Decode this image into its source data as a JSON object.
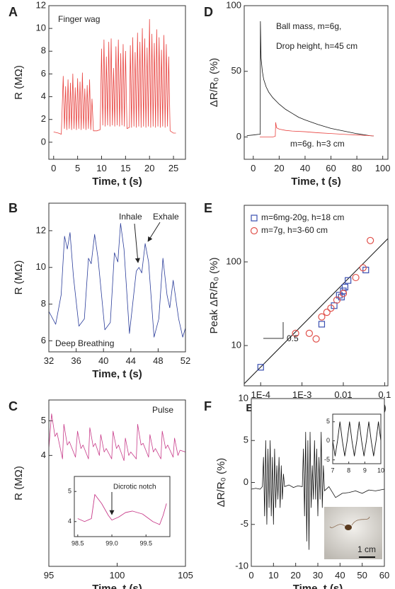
{
  "chart_data": [
    {
      "label": "A",
      "type": "line",
      "xlabel": "Time, t (s)",
      "ylabel": "R (MΩ)",
      "xlim": [
        -1,
        27.5
      ],
      "ylim": [
        -1.5,
        12
      ],
      "xticks": [
        0,
        5,
        10,
        15,
        20,
        25
      ],
      "yticks": [
        0,
        2,
        4,
        6,
        8,
        10,
        12
      ],
      "annotations": [
        {
          "text": "Finger wag"
        }
      ],
      "series": [
        {
          "color": "#e8413e",
          "x": [
            0,
            1,
            1.6,
            2,
            2.25,
            2.5,
            2.75,
            3,
            3.25,
            3.5,
            3.75,
            4,
            4.25,
            4.5,
            4.75,
            5,
            5.25,
            5.5,
            5.75,
            6,
            6.25,
            6.5,
            6.75,
            7,
            7.25,
            7.5,
            7.75,
            8,
            8.3,
            9,
            9.7,
            10,
            10.25,
            10.5,
            10.75,
            11,
            11.25,
            11.5,
            11.75,
            12,
            12.25,
            12.5,
            12.75,
            13,
            13.25,
            13.5,
            13.75,
            14,
            14.25,
            14.5,
            14.75,
            15,
            15.3,
            15.8,
            16,
            16.25,
            16.5,
            16.75,
            17,
            17.25,
            17.5,
            17.75,
            18,
            18.25,
            18.5,
            18.75,
            19,
            19.25,
            19.5,
            19.75,
            20,
            20.25,
            20.5,
            20.75,
            21,
            21.25,
            21.5,
            21.75,
            22,
            22.25,
            22.5,
            22.75,
            23,
            23.25,
            23.5,
            23.75,
            24,
            24.3,
            25,
            25.5
          ],
          "values": [
            0.9,
            0.8,
            0.7,
            5.8,
            1.2,
            4.9,
            1.1,
            5.5,
            1.2,
            5.2,
            1.1,
            6.0,
            1.2,
            4.8,
            1.1,
            5.6,
            1.2,
            5.3,
            1.1,
            6.1,
            1.2,
            4.7,
            1.1,
            5.0,
            1.2,
            5.5,
            1.1,
            3.8,
            1.0,
            1.0,
            1.1,
            8.2,
            1.5,
            9.0,
            1.4,
            7.5,
            1.5,
            8.8,
            1.4,
            9.1,
            1.5,
            6.5,
            1.4,
            8.4,
            1.5,
            9.0,
            1.4,
            7.8,
            1.5,
            8.6,
            1.4,
            8.0,
            1.2,
            1.3,
            8.5,
            1.3,
            9.2,
            1.4,
            7.9,
            1.3,
            9.6,
            1.4,
            8.8,
            1.3,
            10.0,
            1.4,
            9.1,
            1.3,
            8.3,
            1.4,
            10.8,
            1.3,
            9.5,
            1.4,
            8.7,
            1.3,
            9.9,
            1.4,
            9.2,
            1.3,
            8.1,
            1.4,
            9.4,
            1.3,
            8.6,
            1.4,
            7.5,
            1.0,
            0.8,
            0.8
          ]
        }
      ]
    },
    {
      "label": "B",
      "type": "line",
      "xlabel": "Time, t (s)",
      "ylabel": "R (MΩ)",
      "xlim": [
        32,
        52
      ],
      "ylim": [
        5.4,
        13.5
      ],
      "xticks": [
        32,
        36,
        40,
        44,
        48,
        52
      ],
      "yticks": [
        6,
        8,
        10,
        12
      ],
      "annotations": [
        {
          "text": "Inhale"
        },
        {
          "text": "Exhale"
        },
        {
          "text": "Deep Breathing"
        }
      ],
      "series": [
        {
          "color": "#2b3d9a",
          "x": [
            32,
            33,
            33.8,
            34.3,
            34.7,
            35.1,
            35.6,
            36.4,
            37.2,
            37.8,
            38.2,
            38.7,
            39.2,
            40.2,
            41.0,
            41.6,
            42.1,
            42.5,
            43.0,
            43.8,
            44.8,
            45.2,
            45.6,
            46.1,
            46.6,
            47.4,
            48.1,
            48.7,
            49.3,
            49.7,
            50.2,
            51.0,
            51.6,
            52
          ],
          "values": [
            7.6,
            6.9,
            8.5,
            11.7,
            11.0,
            11.9,
            9.5,
            6.8,
            7.2,
            10.5,
            10.2,
            11.8,
            10.5,
            6.6,
            7.0,
            10.8,
            10.3,
            12.4,
            11.0,
            6.4,
            9.8,
            10.0,
            9.7,
            11.3,
            10.3,
            6.2,
            7.2,
            10.5,
            8.5,
            7.8,
            9.3,
            7.2,
            6.2,
            6.7
          ]
        }
      ]
    },
    {
      "label": "C",
      "type": "line",
      "xlabel": "Time, t (s)",
      "ylabel": "R (MΩ)",
      "xlim": [
        95,
        105
      ],
      "ylim": [
        0.8,
        5.6
      ],
      "xticks": [
        95,
        100,
        105
      ],
      "yticks": [
        4,
        5
      ],
      "annotations": [
        {
          "text": "Pulse"
        }
      ],
      "series": [
        {
          "color": "#c83c8a",
          "x": [
            95.0,
            95.2,
            95.45,
            95.6,
            96.0,
            96.1,
            96.35,
            96.5,
            96.95,
            97.1,
            97.35,
            97.5,
            97.9,
            98.0,
            98.25,
            98.4,
            98.7,
            98.8,
            99.05,
            99.2,
            99.6,
            99.7,
            99.95,
            100.1,
            100.5,
            100.6,
            100.85,
            101.0,
            101.4,
            101.5,
            101.75,
            101.9,
            102.3,
            102.4,
            102.65,
            102.8,
            103.2,
            103.3,
            103.55,
            103.7,
            104.1,
            104.2,
            104.45,
            104.6,
            105.0
          ],
          "values": [
            4.2,
            5.2,
            4.55,
            4.65,
            3.9,
            4.9,
            4.3,
            4.4,
            3.95,
            4.7,
            4.2,
            4.3,
            3.9,
            4.8,
            4.25,
            4.35,
            4.0,
            4.6,
            4.1,
            4.2,
            3.9,
            4.7,
            4.2,
            4.3,
            3.85,
            4.5,
            4.0,
            4.1,
            3.9,
            4.9,
            4.3,
            4.35,
            3.95,
            4.6,
            4.1,
            4.2,
            3.9,
            4.7,
            4.2,
            4.3,
            3.95,
            4.5,
            4.0,
            4.15,
            4.1
          ]
        }
      ],
      "inset": {
        "type": "line",
        "xlim": [
          98.45,
          99.85
        ],
        "ylim": [
          3.5,
          5.5
        ],
        "xticks": [
          98.5,
          {
            "value": 99,
            "label": "99.0"
          },
          99.5
        ],
        "yticks": [
          4,
          5
        ],
        "annotations": [
          {
            "text": "Dicrotic notch"
          }
        ],
        "series": [
          {
            "color": "#c83c8a",
            "x": [
              98.5,
              98.6,
              98.7,
              98.75,
              98.85,
              98.95,
              99.0,
              99.1,
              99.2,
              99.3,
              99.45,
              99.6,
              99.7,
              99.75,
              99.8
            ],
            "values": [
              4.1,
              4.0,
              4.1,
              4.9,
              4.6,
              4.2,
              4.05,
              4.15,
              4.3,
              4.35,
              4.25,
              4.0,
              3.9,
              4.2,
              4.6
            ]
          }
        ]
      }
    },
    {
      "label": "D",
      "type": "line",
      "xlabel": "Time, t (s)",
      "ylabel": "ΔR/R₀ (%)",
      "xlim": [
        -7,
        104
      ],
      "ylim": [
        -17,
        100
      ],
      "xticks": [
        0,
        20,
        40,
        60,
        80,
        100
      ],
      "yticks": [
        0,
        50,
        100
      ],
      "annotations": [
        {
          "text": "Ball mass, m=6g,"
        },
        {
          "text": "Drop height, h=45 cm"
        },
        {
          "text": "m=6g. h=3 cm",
          "color": "#e8413e"
        }
      ],
      "series": [
        {
          "color": "#111111",
          "x": [
            -5,
            0,
            4,
            5.4,
            5.5,
            6,
            7,
            8,
            10,
            12,
            15,
            20,
            25,
            30,
            35,
            40,
            50,
            60,
            70,
            80,
            90,
            93
          ],
          "values": [
            1,
            1.5,
            2,
            2,
            88,
            60,
            50,
            44,
            38,
            34,
            30,
            25,
            21,
            18,
            15,
            13,
            9.5,
            6.5,
            4.5,
            2.5,
            1,
            0.8
          ]
        },
        {
          "color": "#e8413e",
          "x": [
            5,
            15,
            17,
            17.3,
            18,
            20,
            25,
            30,
            40,
            50,
            60,
            70,
            80,
            90,
            93
          ],
          "values": [
            0,
            0,
            0.5,
            11,
            7,
            6,
            5,
            4.5,
            4,
            3.2,
            2.6,
            2,
            1.5,
            1,
            0.8
          ]
        }
      ]
    },
    {
      "label": "E",
      "type": "scatter",
      "xlabel": "Energy deposited, Emgh (J)",
      "ylabel": "Peak ΔR/R₀ (%)",
      "xscale": "log",
      "yscale": "log",
      "xlim": [
        4e-05,
        0.12
      ],
      "ylim": [
        3.3,
        475
      ],
      "xticks": [
        {
          "value": 0.0001,
          "label": "1E-4"
        },
        {
          "value": 0.001,
          "label": "1E-3"
        },
        0.01,
        0.1
      ],
      "yticks": [
        10,
        100
      ],
      "legend": "upper left",
      "annotations": [
        {
          "text": "0.5"
        }
      ],
      "series": [
        {
          "name": "m=6mg-20g, h=18 cm",
          "color": "#3a4fb0",
          "marker": "square",
          "x": [
            0.0001,
            0.003,
            0.006,
            0.008,
            0.009,
            0.01,
            0.011,
            0.013,
            0.035
          ],
          "values": [
            5.5,
            18,
            30,
            40,
            38,
            45,
            50,
            60,
            80
          ]
        },
        {
          "name": "m=7g, h=3-60 cm",
          "color": "#e0504a",
          "marker": "circle",
          "x": [
            0.0007,
            0.0015,
            0.0022,
            0.003,
            0.004,
            0.005,
            0.007,
            0.01,
            0.02,
            0.03,
            0.045
          ],
          "values": [
            14,
            14,
            12,
            22,
            25,
            28,
            35,
            42,
            65,
            85,
            180
          ]
        }
      ],
      "fit": {
        "color": "#111111",
        "x": [
          4e-05,
          0.12
        ],
        "values": [
          3.5,
          190
        ]
      }
    },
    {
      "label": "F",
      "type": "line",
      "xlabel": "Time, t (s)",
      "ylabel": "ΔR/R₀ (%)",
      "xlim": [
        0,
        60
      ],
      "ylim": [
        -10,
        10
      ],
      "xticks": [
        0,
        10,
        20,
        30,
        40,
        50,
        60
      ],
      "yticks": [
        -10,
        -5,
        0,
        5,
        10
      ],
      "annotations": [
        {
          "text": "1 cm"
        }
      ],
      "series": [
        {
          "color": "#111111",
          "x": [
            0,
            2,
            4,
            5,
            5.5,
            6,
            6.5,
            7,
            7.5,
            8,
            8.5,
            9,
            9.5,
            10,
            10.5,
            11,
            11.5,
            12,
            12.5,
            13,
            13.5,
            14,
            14.5,
            15,
            17,
            19,
            21,
            23,
            23.5,
            24,
            24.5,
            25,
            25.5,
            26,
            26.5,
            27,
            27.5,
            28,
            28.5,
            29,
            29.5,
            30,
            30.5,
            31,
            31.5,
            32,
            32.5,
            33,
            35,
            38,
            41,
            44,
            47,
            50,
            53,
            56,
            60
          ],
          "values": [
            -0.8,
            -0.7,
            -0.8,
            -0.5,
            3,
            -4,
            5,
            -5,
            4,
            -3,
            5,
            -4,
            3,
            -5,
            4,
            -3,
            2,
            -2,
            3,
            -3,
            2,
            -2,
            1,
            -0.5,
            -0.3,
            -0.6,
            -0.4,
            -0.5,
            4,
            -4,
            6,
            -7,
            5,
            -8,
            6,
            -3,
            2,
            -2,
            5,
            -2,
            4,
            -4,
            3,
            -2,
            6,
            -3,
            2,
            -1,
            -0.5,
            -1.8,
            -1.3,
            -1.2,
            -1.0,
            -1.3,
            -0.9,
            -1.0,
            -0.8
          ]
        }
      ],
      "inset": {
        "type": "line",
        "xlim": [
          7,
          10
        ],
        "ylim": [
          -6,
          7
        ],
        "xticks": [
          7,
          8,
          9,
          10
        ],
        "yticks": [
          -5,
          0,
          5
        ],
        "series": [
          {
            "color": "#111111",
            "x": [
              7,
              7.15,
              7.3,
              7.45,
              7.6,
              7.75,
              7.9,
              8.05,
              8.2,
              8.35,
              8.5,
              8.65,
              8.8,
              8.95,
              9.1,
              9.25,
              9.4,
              9.55,
              9.7,
              9.85,
              10
            ],
            "values": [
              0,
              -4,
              0,
              5,
              0,
              -4,
              0,
              5,
              0,
              -4,
              0,
              5,
              0,
              -4,
              0,
              5,
              0,
              -4,
              0,
              5,
              0
            ]
          }
        ]
      }
    }
  ]
}
